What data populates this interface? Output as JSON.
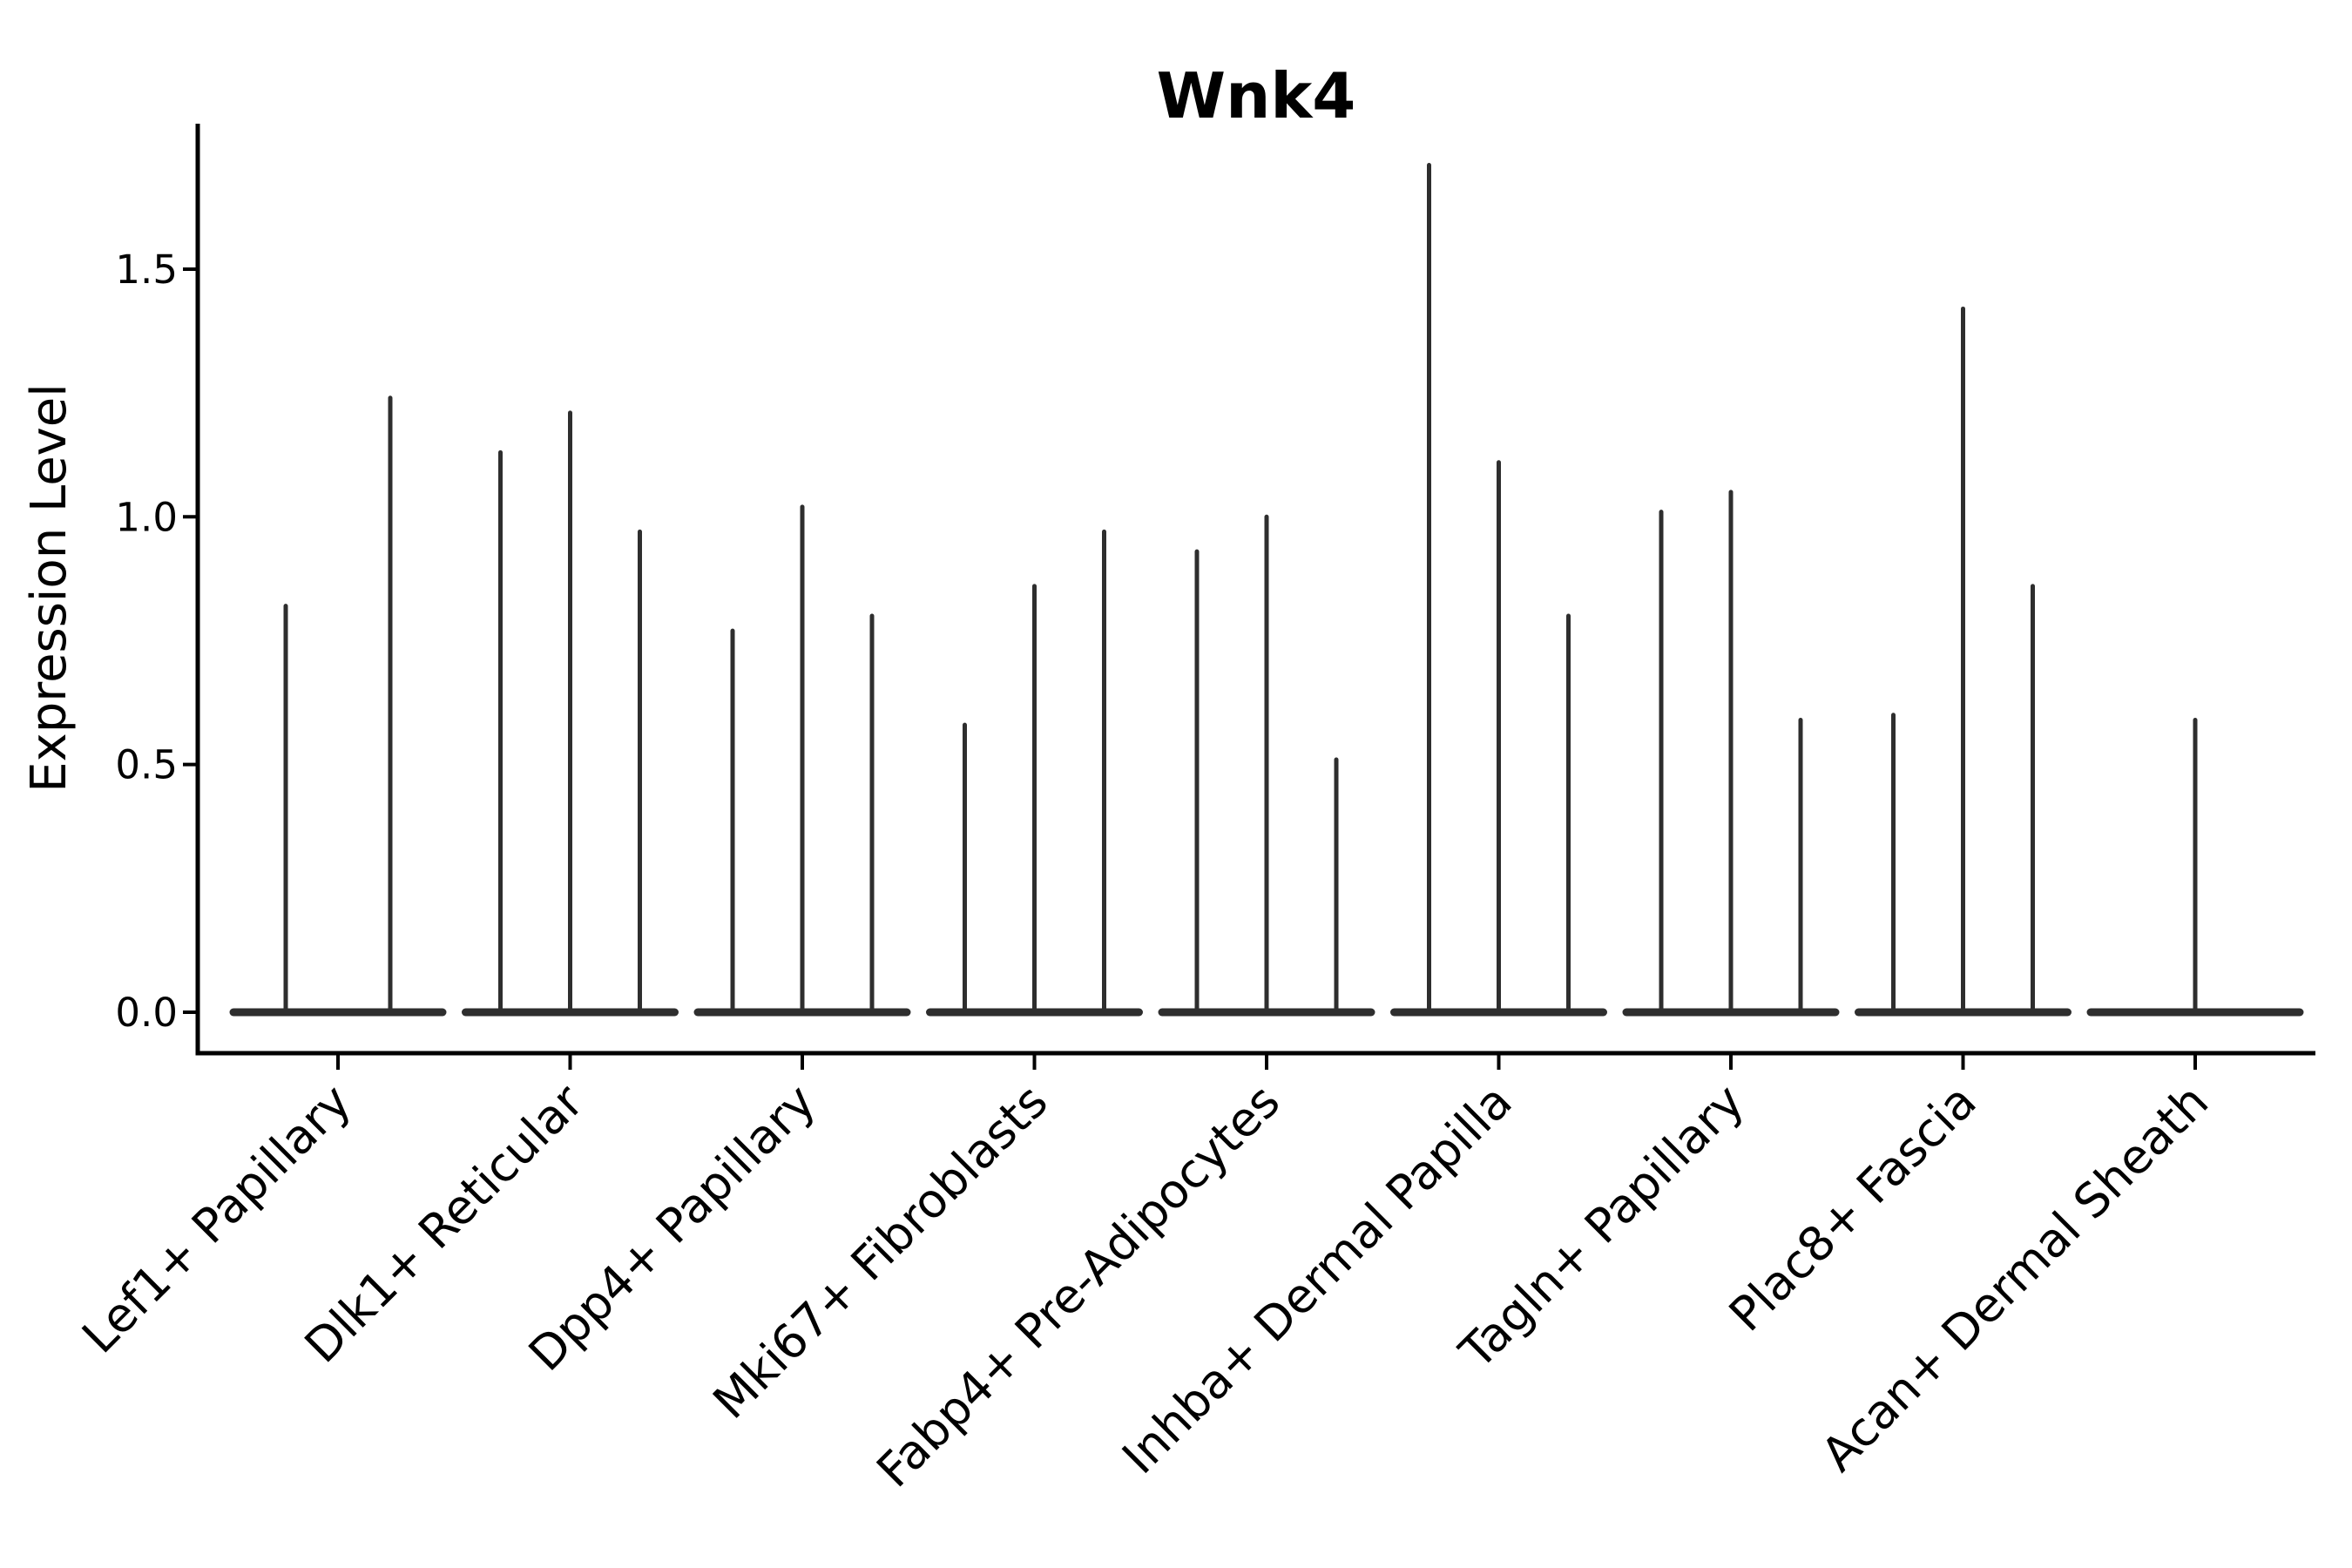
{
  "figure": {
    "title": "Wnk4",
    "y_axis_label": "Expression Level",
    "y_tick_labels": [
      "0.0",
      "0.5",
      "1.0",
      "1.5"
    ]
  },
  "colors": {
    "background": "#ffffff",
    "violin_line": "#2e2e2e",
    "axis": "#000000",
    "text": "#000000"
  },
  "chart_data": {
    "type": "violin",
    "title": "Wnk4",
    "xlabel": "",
    "ylabel": "Expression Level",
    "grid": false,
    "legend_position": "none",
    "x_tick_rotation_deg": 45,
    "yticks": [
      0.0,
      0.5,
      1.0,
      1.5
    ],
    "ylim": [
      -0.08,
      1.79
    ],
    "violin_style": "collapsed flat base at 0 with thin vertical spike up to the maximum expression value",
    "categories": [
      "Lef1+ Papillary",
      "Dlk1+ Reticular",
      "Dpp4+ Papillary",
      "Mki67+ Fibroblasts",
      "Fabp4+ Pre-Adipocytes",
      "Inhba+ Dermal Papilla",
      "Tagln+ Papillary",
      "Plac8+ Fascia",
      "Acan+ Dermal Sheath"
    ],
    "series": [
      {
        "name": "Lef1+ Papillary",
        "violin_max_values": [
          0.82,
          1.24
        ]
      },
      {
        "name": "Dlk1+ Reticular",
        "violin_max_values": [
          1.13,
          1.21,
          0.97
        ]
      },
      {
        "name": "Dpp4+ Papillary",
        "violin_max_values": [
          0.77,
          1.02,
          0.8
        ]
      },
      {
        "name": "Mki67+ Fibroblasts",
        "violin_max_values": [
          0.58,
          0.86,
          0.97
        ]
      },
      {
        "name": "Fabp4+ Pre-Adipocytes",
        "violin_max_values": [
          0.93,
          1.0,
          0.51
        ]
      },
      {
        "name": "Inhba+ Dermal Papilla",
        "violin_max_values": [
          1.71,
          1.11,
          0.8
        ]
      },
      {
        "name": "Tagln+ Papillary",
        "violin_max_values": [
          1.01,
          1.05,
          0.59
        ]
      },
      {
        "name": "Plac8+ Fascia",
        "violin_max_values": [
          0.6,
          1.42,
          0.86
        ]
      },
      {
        "name": "Acan+ Dermal Sheath",
        "violin_max_values": [
          0.59
        ]
      }
    ]
  }
}
